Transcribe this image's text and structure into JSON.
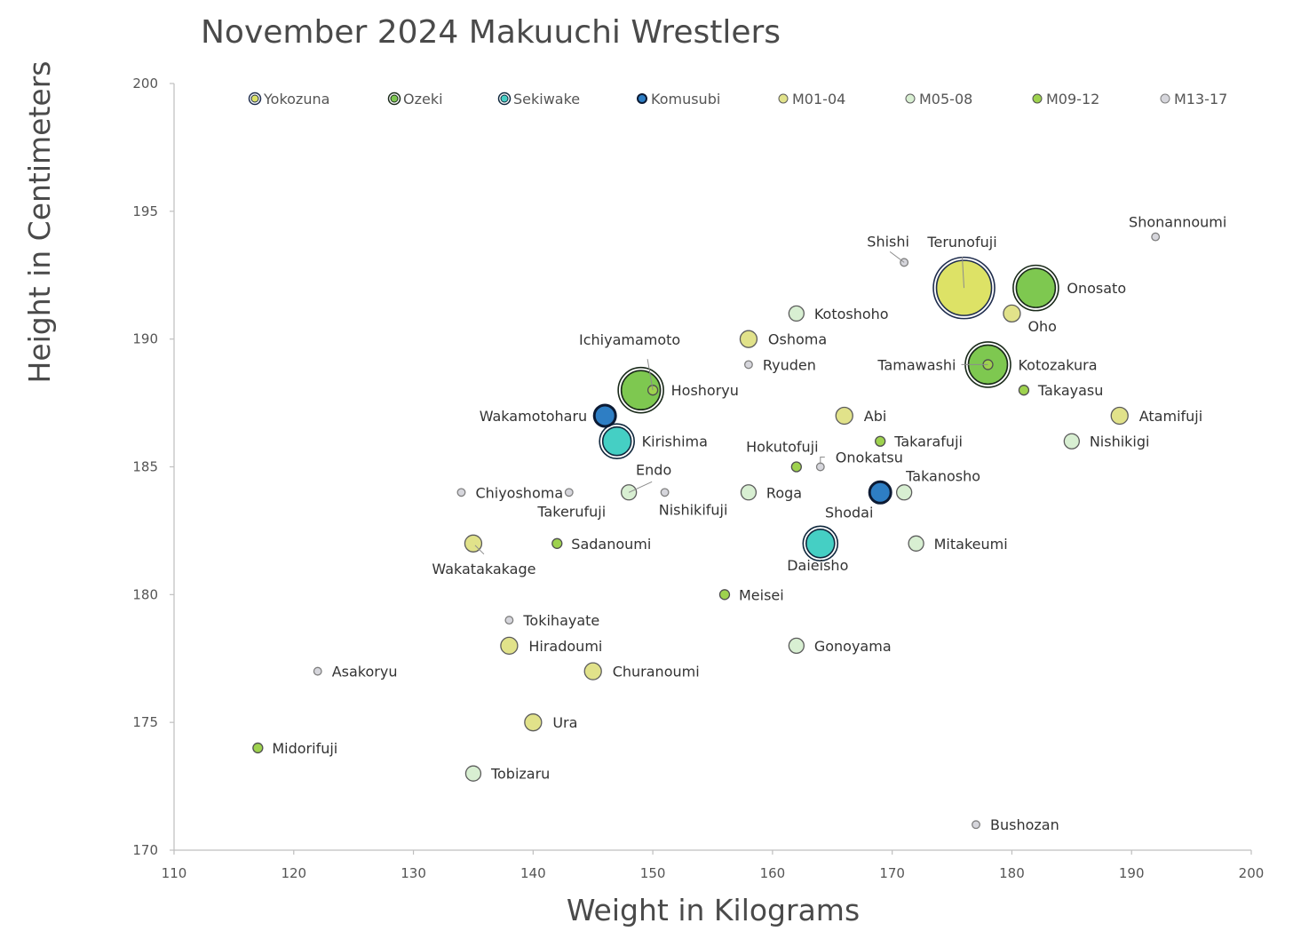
{
  "chart_data": {
    "type": "scatter",
    "title": "November 2024 Makuuchi Wrestlers",
    "xlabel": "Weight in Kilograms",
    "ylabel": "Height in Centimeters",
    "xlim": [
      110,
      200
    ],
    "ylim": [
      170,
      200
    ],
    "x_ticks": [
      "110",
      "120",
      "130",
      "140",
      "150",
      "160",
      "170",
      "180",
      "190",
      "200"
    ],
    "y_ticks": [
      "170",
      "175",
      "180",
      "185",
      "190",
      "195",
      "200"
    ],
    "legend_position": "top",
    "grid": false,
    "series": [
      {
        "name": "Yokozuna",
        "color": "#dde266",
        "edge": "#1f2d4d",
        "ring": true,
        "points": [
          {
            "label": "Terunofuji",
            "x": 176,
            "y": 192
          }
        ]
      },
      {
        "name": "Ozeki",
        "color": "#7ec850",
        "edge": "#1a2a1a",
        "ring": true,
        "points": [
          {
            "label": "Onosato",
            "x": 182,
            "y": 192
          },
          {
            "label": "Kotozakura",
            "x": 178,
            "y": 189
          },
          {
            "label": "Hoshoryu",
            "x": 149,
            "y": 188
          }
        ]
      },
      {
        "name": "Sekiwake",
        "color": "#45cfc4",
        "edge": "#10283d",
        "ring": true,
        "points": [
          {
            "label": "Kirishima",
            "x": 147,
            "y": 186
          },
          {
            "label": "Daieisho",
            "x": 164,
            "y": 182
          }
        ]
      },
      {
        "name": "Komusubi",
        "color": "#2e7ec4",
        "edge": "#0c1a33",
        "ring": false,
        "points": [
          {
            "label": "Wakamotoharu",
            "x": 146,
            "y": 187
          },
          {
            "label": "Shodai",
            "x": 169,
            "y": 184
          }
        ]
      },
      {
        "name": "M01-04",
        "color": "#e1e28a",
        "edge": "#5c5c5c",
        "ring": false,
        "points": [
          {
            "label": "Oho",
            "x": 180,
            "y": 191
          },
          {
            "label": "Oshoma",
            "x": 158,
            "y": 190
          },
          {
            "label": "Abi",
            "x": 166,
            "y": 187
          },
          {
            "label": "Atamifuji",
            "x": 189,
            "y": 187
          },
          {
            "label": "Wakatakakage",
            "x": 135,
            "y": 182
          },
          {
            "label": "Hiradoumi",
            "x": 138,
            "y": 178
          },
          {
            "label": "Churanoumi",
            "x": 145,
            "y": 177
          },
          {
            "label": "Ura",
            "x": 140,
            "y": 175
          }
        ]
      },
      {
        "name": "M05-08",
        "color": "#d8efd2",
        "edge": "#5c5c5c",
        "ring": false,
        "points": [
          {
            "label": "Kotoshoho",
            "x": 162,
            "y": 191
          },
          {
            "label": "Nishikigi",
            "x": 185,
            "y": 186
          },
          {
            "label": "Endo",
            "x": 148,
            "y": 184
          },
          {
            "label": "Roga",
            "x": 158,
            "y": 184
          },
          {
            "label": "Takanosho",
            "x": 171,
            "y": 184
          },
          {
            "label": "Mitakeumi",
            "x": 172,
            "y": 182
          },
          {
            "label": "Gonoyama",
            "x": 162,
            "y": 178
          },
          {
            "label": "Tobizaru",
            "x": 135,
            "y": 173
          }
        ]
      },
      {
        "name": "M09-12",
        "color": "#9ed24e",
        "edge": "#4f4f4f",
        "ring": false,
        "points": [
          {
            "label": "Ichiyamamoto",
            "x": 150,
            "y": 188
          },
          {
            "label": "Tamawashi",
            "x": 178,
            "y": 189
          },
          {
            "label": "Takayasu",
            "x": 181,
            "y": 188
          },
          {
            "label": "Takarafuji",
            "x": 169,
            "y": 186
          },
          {
            "label": "Hokutofuji",
            "x": 162,
            "y": 185
          },
          {
            "label": "Sadanoumi",
            "x": 142,
            "y": 182
          },
          {
            "label": "Meisei",
            "x": 156,
            "y": 180
          },
          {
            "label": "Midorifuji",
            "x": 117,
            "y": 174
          }
        ]
      },
      {
        "name": "M13-17",
        "color": "#d6d6dc",
        "edge": "#7f7f7f",
        "ring": false,
        "points": [
          {
            "label": "Shonannoumi",
            "x": 192,
            "y": 194
          },
          {
            "label": "Shishi",
            "x": 171,
            "y": 193
          },
          {
            "label": "Ryuden",
            "x": 158,
            "y": 189
          },
          {
            "label": "Onokatsu",
            "x": 164,
            "y": 185
          },
          {
            "label": "Chiyoshoma",
            "x": 134,
            "y": 184
          },
          {
            "label": "Takerufuji",
            "x": 143,
            "y": 184
          },
          {
            "label": "Nishikifuji",
            "x": 151,
            "y": 184
          },
          {
            "label": "Tokihayate",
            "x": 138,
            "y": 179
          },
          {
            "label": "Asakoryu",
            "x": 122,
            "y": 177
          },
          {
            "label": "Bushozan",
            "x": 177,
            "y": 171
          }
        ]
      }
    ]
  }
}
